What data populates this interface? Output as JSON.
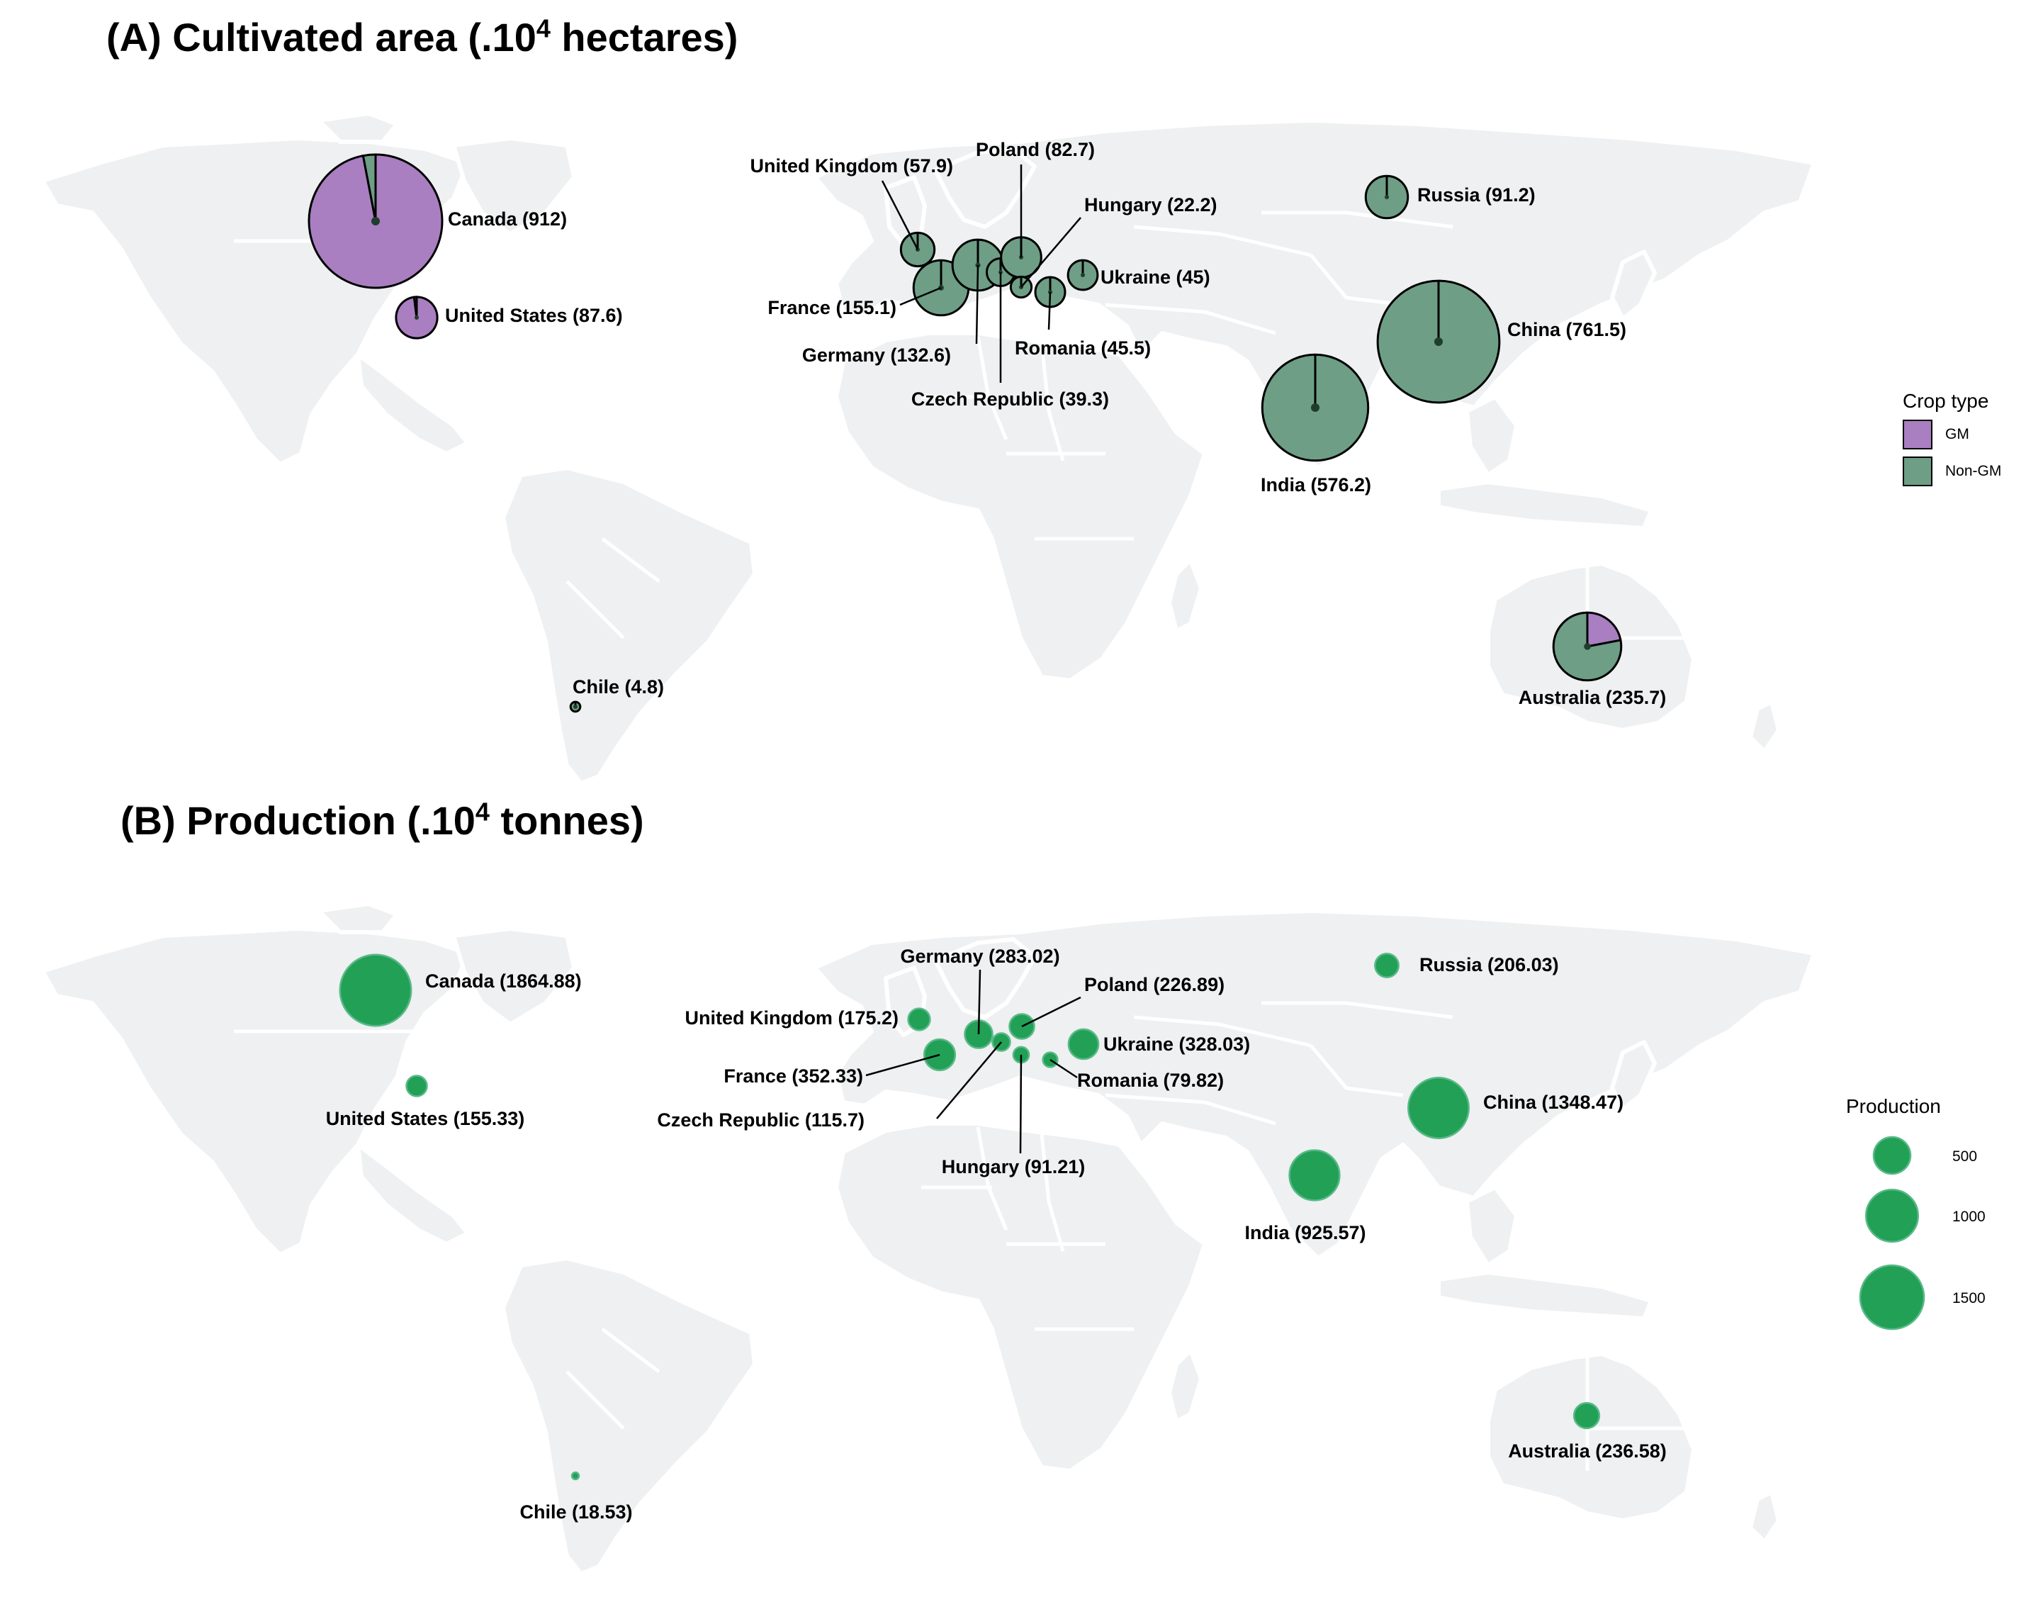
{
  "panel_a": {
    "title": "(A) Cultivated area (.10",
    "title_sup": "4",
    "title_end": " hectares)",
    "legend": {
      "title": "Crop type",
      "items": [
        {
          "label": "GM",
          "color": "#a97fc1"
        },
        {
          "label": "Non-GM",
          "color": "#6e9e86"
        }
      ]
    }
  },
  "panel_b": {
    "title": "(B) Production (.10",
    "title_sup": "4",
    "title_end": " tonnes)",
    "legend": {
      "title": "Production",
      "items": [
        {
          "label": "500",
          "value": 500
        },
        {
          "label": "1000",
          "value": 1000
        },
        {
          "label": "1500",
          "value": 1500
        }
      ],
      "color": "#21a056"
    }
  },
  "colors": {
    "gm": "#a97fc1",
    "non_gm": "#6e9e86",
    "production": "#21a056",
    "land": "#eef0f1"
  },
  "countries": [
    {
      "name": "Canada",
      "area": 912,
      "area_label": "Canada (912)",
      "gm_share": 0.97,
      "production": 1864.88,
      "prod_label": "Canada (1864.88)"
    },
    {
      "name": "United States",
      "area": 87.6,
      "area_label": "United States (87.6)",
      "gm_share": 0.98,
      "production": 155.33,
      "prod_label": "United States (155.33)"
    },
    {
      "name": "Chile",
      "area": 4.8,
      "area_label": "Chile (4.8)",
      "gm_share": 0,
      "production": 18.53,
      "prod_label": "Chile (18.53)"
    },
    {
      "name": "United Kingdom",
      "area": 57.9,
      "area_label": "United Kingdom (57.9)",
      "gm_share": 0,
      "production": 175.2,
      "prod_label": "United Kingdom (175.2)"
    },
    {
      "name": "France",
      "area": 155.1,
      "area_label": "France (155.1)",
      "gm_share": 0,
      "production": 352.33,
      "prod_label": "France (352.33)"
    },
    {
      "name": "Germany",
      "area": 132.6,
      "area_label": "Germany (132.6)",
      "gm_share": 0,
      "production": 283.02,
      "prod_label": "Germany (283.02)"
    },
    {
      "name": "Czech Republic",
      "area": 39.3,
      "area_label": "Czech Republic (39.3)",
      "gm_share": 0,
      "production": 115.7,
      "prod_label": "Czech Republic (115.7)"
    },
    {
      "name": "Poland",
      "area": 82.7,
      "area_label": "Poland (82.7)",
      "gm_share": 0,
      "production": 226.89,
      "prod_label": "Poland (226.89)"
    },
    {
      "name": "Hungary",
      "area": 22.2,
      "area_label": "Hungary (22.2)",
      "gm_share": 0,
      "production": 91.21,
      "prod_label": "Hungary (91.21)"
    },
    {
      "name": "Romania",
      "area": 45.5,
      "area_label": "Romania (45.5)",
      "gm_share": 0,
      "production": 79.82,
      "prod_label": "Romania (79.82)"
    },
    {
      "name": "Ukraine",
      "area": 45,
      "area_label": "Ukraine (45)",
      "gm_share": 0,
      "production": 328.03,
      "prod_label": "Ukraine (328.03)"
    },
    {
      "name": "Russia",
      "area": 91.2,
      "area_label": "Russia (91.2)",
      "gm_share": 0,
      "production": 206.03,
      "prod_label": "Russia (206.03)"
    },
    {
      "name": "China",
      "area": 761.5,
      "area_label": "China (761.5)",
      "gm_share": 0,
      "production": 1348.47,
      "prod_label": "China (1348.47)"
    },
    {
      "name": "India",
      "area": 576.2,
      "area_label": "India (576.2)",
      "gm_share": 0,
      "production": 925.57,
      "prod_label": "India (925.57)"
    },
    {
      "name": "Australia",
      "area": 235.7,
      "area_label": "Australia (235.7)",
      "gm_share": 0.22,
      "production": 236.58,
      "prod_label": "Australia (236.58)"
    }
  ]
}
